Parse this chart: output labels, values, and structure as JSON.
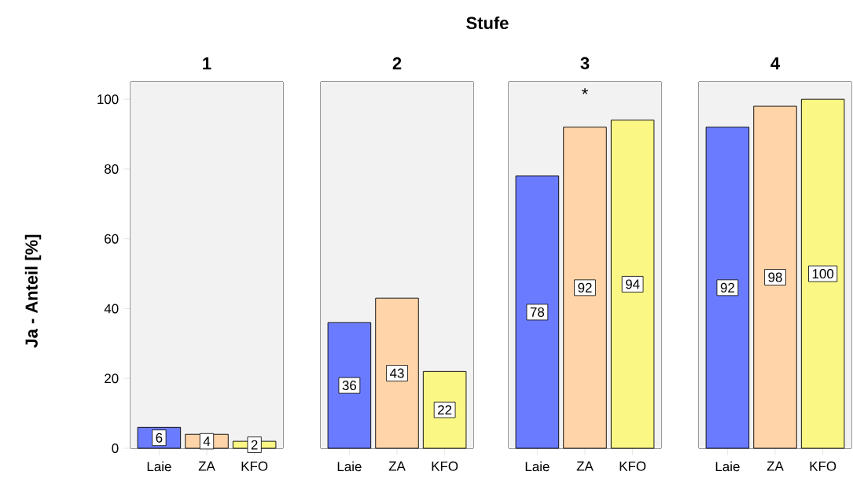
{
  "chart_data": [
    {
      "type": "bar",
      "title": "1",
      "ylabel": "Ja - Anteil [%]",
      "annotations": [
        "Stufe"
      ],
      "categories": [
        "Laie",
        "ZA",
        "KFO"
      ],
      "values": [
        6,
        4,
        2
      ],
      "colors": [
        "#6b7bff",
        "#ffd4a8",
        "#fbf785"
      ],
      "ylim": [
        0,
        105
      ],
      "yticks": [
        0,
        20,
        40,
        60,
        80,
        100
      ],
      "data_labels": true
    },
    {
      "type": "bar",
      "title": "2",
      "categories": [
        "Laie",
        "ZA",
        "KFO"
      ],
      "values": [
        36,
        43,
        22
      ],
      "colors": [
        "#6b7bff",
        "#ffd4a8",
        "#fbf785"
      ],
      "ylim": [
        0,
        105
      ],
      "tick_labels": "x",
      "data_labels": true
    },
    {
      "type": "bar",
      "title": "3",
      "annotations": [
        "*"
      ],
      "categories": [
        "Laie",
        "ZA",
        "KFO"
      ],
      "values": [
        78,
        92,
        94
      ],
      "colors": [
        "#6b7bff",
        "#ffd4a8",
        "#fbf785"
      ],
      "ylim": [
        0,
        105
      ],
      "tick_labels": "x",
      "data_labels": true
    },
    {
      "type": "bar",
      "title": "4",
      "categories": [
        "Laie",
        "ZA",
        "KFO"
      ],
      "values": [
        92,
        98,
        100
      ],
      "colors": [
        "#6b7bff",
        "#ffd4a8",
        "#fbf785"
      ],
      "ylim": [
        0,
        105
      ],
      "tick_labels": "x",
      "data_labels": true
    }
  ]
}
